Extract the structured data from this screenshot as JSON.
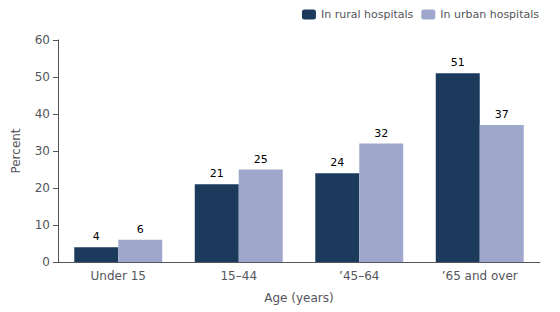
{
  "chart_data": {
    "type": "bar",
    "categories": [
      "Under 15",
      "15–44",
      "’45–64",
      "’65 and over"
    ],
    "series": [
      {
        "name": "In rural hospitals",
        "color": "#1b3a5c",
        "values": [
          4,
          21,
          24,
          51
        ]
      },
      {
        "name": "In urban hospitals",
        "color": "#9fa8cc",
        "values": [
          6,
          25,
          32,
          37
        ]
      }
    ],
    "xlabel": "Age (years)",
    "ylabel": "Percent",
    "ylim": [
      0,
      60
    ],
    "yticks": [
      0,
      10,
      20,
      30,
      40,
      50,
      60
    ],
    "grid": false,
    "legend": "upper right",
    "data_labels": true
  }
}
